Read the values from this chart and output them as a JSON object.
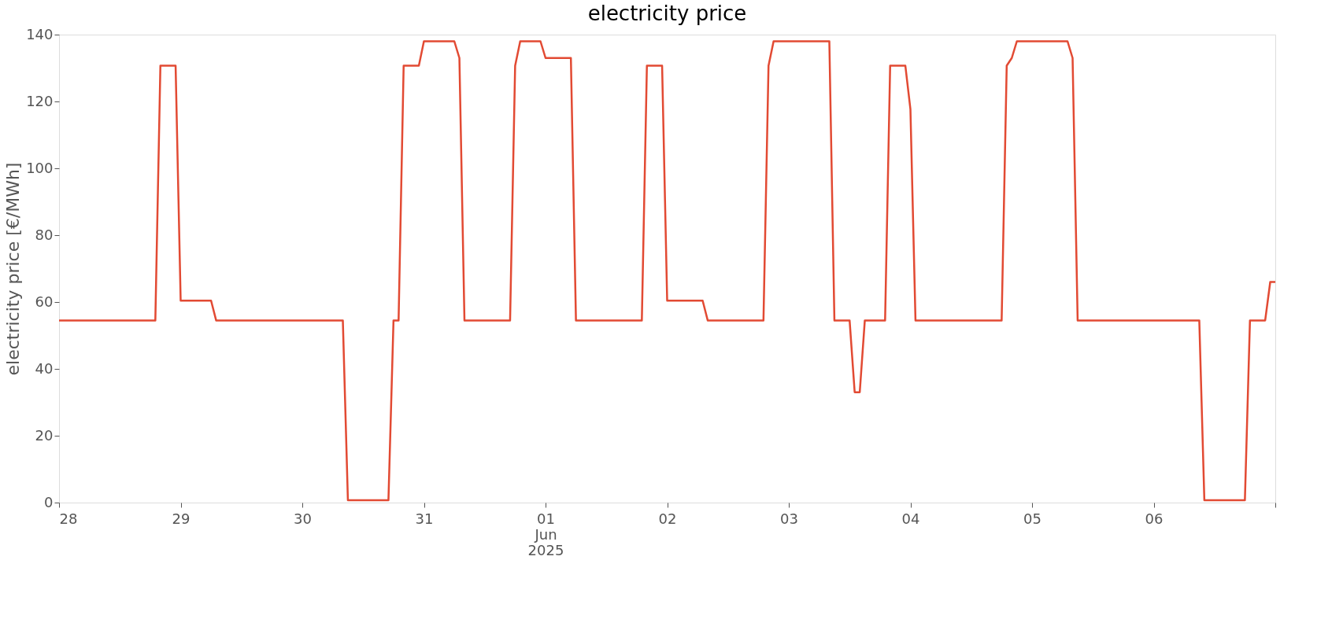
{
  "chart_data": {
    "type": "line",
    "title": "electricity price",
    "ylabel": "electricity price [€/MWh]",
    "x": [
      "2025-05-28T00:00",
      "2025-05-28T19:00",
      "2025-05-28T20:00",
      "2025-05-28T23:00",
      "2025-05-29T00:00",
      "2025-05-29T06:00",
      "2025-05-29T07:00",
      "2025-05-30T08:00",
      "2025-05-30T09:00",
      "2025-05-30T17:00",
      "2025-05-30T18:00",
      "2025-05-30T19:00",
      "2025-05-30T20:00",
      "2025-05-30T23:00",
      "2025-05-31T00:00",
      "2025-05-31T06:00",
      "2025-05-31T07:00",
      "2025-05-31T08:00",
      "2025-05-31T17:00",
      "2025-05-31T18:00",
      "2025-05-31T19:00",
      "2025-05-31T23:00",
      "2025-06-01T00:00",
      "2025-06-01T05:00",
      "2025-06-01T06:00",
      "2025-06-01T19:00",
      "2025-06-01T20:00",
      "2025-06-01T23:00",
      "2025-06-02T00:00",
      "2025-06-02T07:00",
      "2025-06-02T08:00",
      "2025-06-02T19:00",
      "2025-06-02T20:00",
      "2025-06-02T21:00",
      "2025-06-03T08:00",
      "2025-06-03T09:00",
      "2025-06-03T12:00",
      "2025-06-03T13:00",
      "2025-06-03T14:00",
      "2025-06-03T15:00",
      "2025-06-03T19:00",
      "2025-06-03T20:00",
      "2025-06-03T23:00",
      "2025-06-04T00:00",
      "2025-06-04T01:00",
      "2025-06-04T18:00",
      "2025-06-04T19:00",
      "2025-06-04T20:00",
      "2025-06-04T21:00",
      "2025-06-05T07:00",
      "2025-06-05T08:00",
      "2025-06-05T09:00",
      "2025-06-06T09:00",
      "2025-06-06T10:00",
      "2025-06-06T18:00",
      "2025-06-06T19:00",
      "2025-06-06T22:00",
      "2025-06-06T23:00",
      "2025-06-07T00:00"
    ],
    "series": [
      {
        "color": "#e24a33",
        "values": [
          54.5,
          54.5,
          130.7,
          130.7,
          60.4,
          60.4,
          54.5,
          54.5,
          0.7,
          0.7,
          54.5,
          54.5,
          130.7,
          130.7,
          138,
          138,
          133,
          54.5,
          54.5,
          130.7,
          138,
          138,
          133,
          133,
          54.5,
          54.5,
          130.7,
          130.7,
          60.4,
          60.4,
          54.5,
          54.5,
          130.7,
          138,
          138,
          54.5,
          54.5,
          33,
          33,
          54.5,
          54.5,
          130.7,
          130.7,
          117.7,
          54.5,
          54.5,
          130.7,
          133,
          138,
          138,
          133,
          54.5,
          54.5,
          0.7,
          0.7,
          54.5,
          54.5,
          66,
          66
        ]
      }
    ],
    "xlim": [
      "2025-05-28T00:00",
      "2025-06-07T00:00"
    ],
    "xticks": [
      {
        "value": "2025-05-28T00:00",
        "label": "28"
      },
      {
        "value": "2025-05-29T00:00",
        "label": "29"
      },
      {
        "value": "2025-05-30T00:00",
        "label": "30"
      },
      {
        "value": "2025-05-31T00:00",
        "label": "31"
      },
      {
        "value": "2025-06-01T00:00",
        "label": "01\nJun\n2025"
      },
      {
        "value": "2025-06-02T00:00",
        "label": "02"
      },
      {
        "value": "2025-06-03T00:00",
        "label": "03"
      },
      {
        "value": "2025-06-04T00:00",
        "label": "04"
      },
      {
        "value": "2025-06-05T00:00",
        "label": "05"
      },
      {
        "value": "2025-06-06T00:00",
        "label": "06"
      },
      {
        "value": "2025-06-07T00:00",
        "label": null
      }
    ],
    "ylim": [
      0,
      140
    ],
    "yticks": [
      0,
      20,
      40,
      60,
      80,
      100,
      120,
      140
    ],
    "grid": false
  }
}
